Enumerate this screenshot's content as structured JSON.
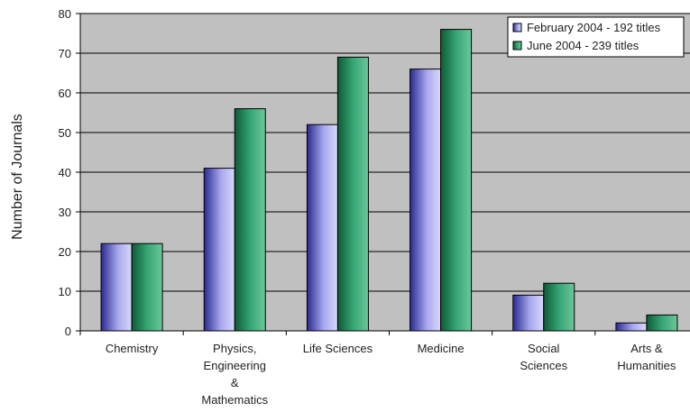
{
  "chart_data": {
    "type": "bar",
    "title": "",
    "xlabel": "",
    "ylabel": "Number of Journals",
    "ylim": [
      0,
      80
    ],
    "yticks": [
      0,
      10,
      20,
      30,
      40,
      50,
      60,
      70,
      80
    ],
    "grid": "horizontal",
    "legend_position": "top-right",
    "categories": [
      [
        "Chemistry"
      ],
      [
        "Physics,",
        "Engineering",
        "&",
        "Mathematics"
      ],
      [
        "Life Sciences"
      ],
      [
        "Medicine"
      ],
      [
        "Social",
        "Sciences"
      ],
      [
        "Arts &",
        "Humanities"
      ]
    ],
    "series": [
      {
        "name": "February 2004 - 192 titles",
        "values": [
          22,
          41,
          52,
          66,
          9,
          2
        ],
        "color": "#9a9ae8"
      },
      {
        "name": "June 2004 - 239 titles",
        "values": [
          22,
          56,
          69,
          76,
          12,
          4
        ],
        "color": "#2e9a66"
      }
    ],
    "colors": {
      "plot_background": "#c0c0c0",
      "gridline": "#000000"
    }
  }
}
